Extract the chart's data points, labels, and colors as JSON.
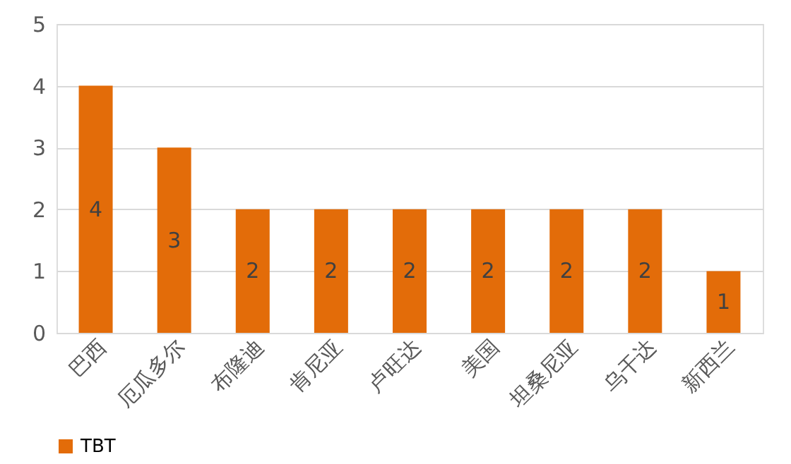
{
  "chart_data": {
    "type": "bar",
    "categories": [
      "巴西",
      "厄瓜多尔",
      "布隆迪",
      "肯尼亚",
      "卢旺达",
      "美国",
      "坦桑尼亚",
      "乌干达",
      "新西兰"
    ],
    "series": [
      {
        "name": "TBT",
        "color": "#e36c09",
        "values": [
          4,
          3,
          2,
          2,
          2,
          2,
          2,
          2,
          1
        ]
      }
    ],
    "ylim": [
      0,
      5
    ],
    "yticks": [
      0,
      1,
      2,
      3,
      4,
      5
    ],
    "grid": "y",
    "legend": "bottom",
    "data_labels": true
  }
}
